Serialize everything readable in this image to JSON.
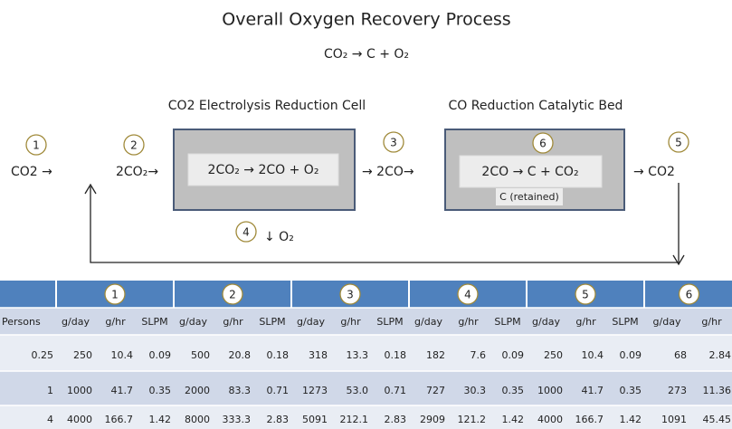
{
  "diagram": {
    "title": "Overall Oxygen Recovery Process",
    "equation": "CO₂ → C + O₂",
    "units": [
      {
        "title": "CO2 Electrolysis Reduction Cell",
        "reaction": "2CO₂ → 2CO + O₂"
      },
      {
        "title": "CO Reduction Catalytic Bed",
        "reaction": "2CO  → C + CO₂",
        "note": "C (retained)"
      }
    ],
    "streams": [
      {
        "id": "1",
        "label": "CO2 →"
      },
      {
        "id": "2",
        "label": "2CO₂→"
      },
      {
        "id": "3",
        "label": "→ 2CO→"
      },
      {
        "id": "4",
        "label": "↓  O₂"
      },
      {
        "id": "5",
        "label": "→ CO2"
      },
      {
        "id": "6"
      }
    ]
  },
  "table": {
    "groups": [
      "1",
      "2",
      "3",
      "4",
      "5",
      "6"
    ],
    "header": [
      "Persons",
      "g/day",
      "g/hr",
      "SLPM",
      "g/day",
      "g/hr",
      "SLPM",
      "g/day",
      "g/hr",
      "SLPM",
      "g/day",
      "g/hr",
      "SLPM",
      "g/day",
      "g/hr",
      "SLPM",
      "g/day",
      "g/hr"
    ],
    "rows": [
      [
        "0.25",
        "250",
        "10.4",
        "0.09",
        "500",
        "20.8",
        "0.18",
        "318",
        "13.3",
        "0.18",
        "182",
        "7.6",
        "0.09",
        "250",
        "10.4",
        "0.09",
        "68",
        "2.84"
      ],
      [
        "1",
        "1000",
        "41.7",
        "0.35",
        "2000",
        "83.3",
        "0.71",
        "1273",
        "53.0",
        "0.71",
        "727",
        "30.3",
        "0.35",
        "1000",
        "41.7",
        "0.35",
        "273",
        "11.36"
      ],
      [
        "4",
        "4000",
        "166.7",
        "1.42",
        "8000",
        "333.3",
        "2.83",
        "5091",
        "212.1",
        "2.83",
        "2909",
        "121.2",
        "1.42",
        "4000",
        "166.7",
        "1.42",
        "1091",
        "45.45"
      ]
    ]
  }
}
